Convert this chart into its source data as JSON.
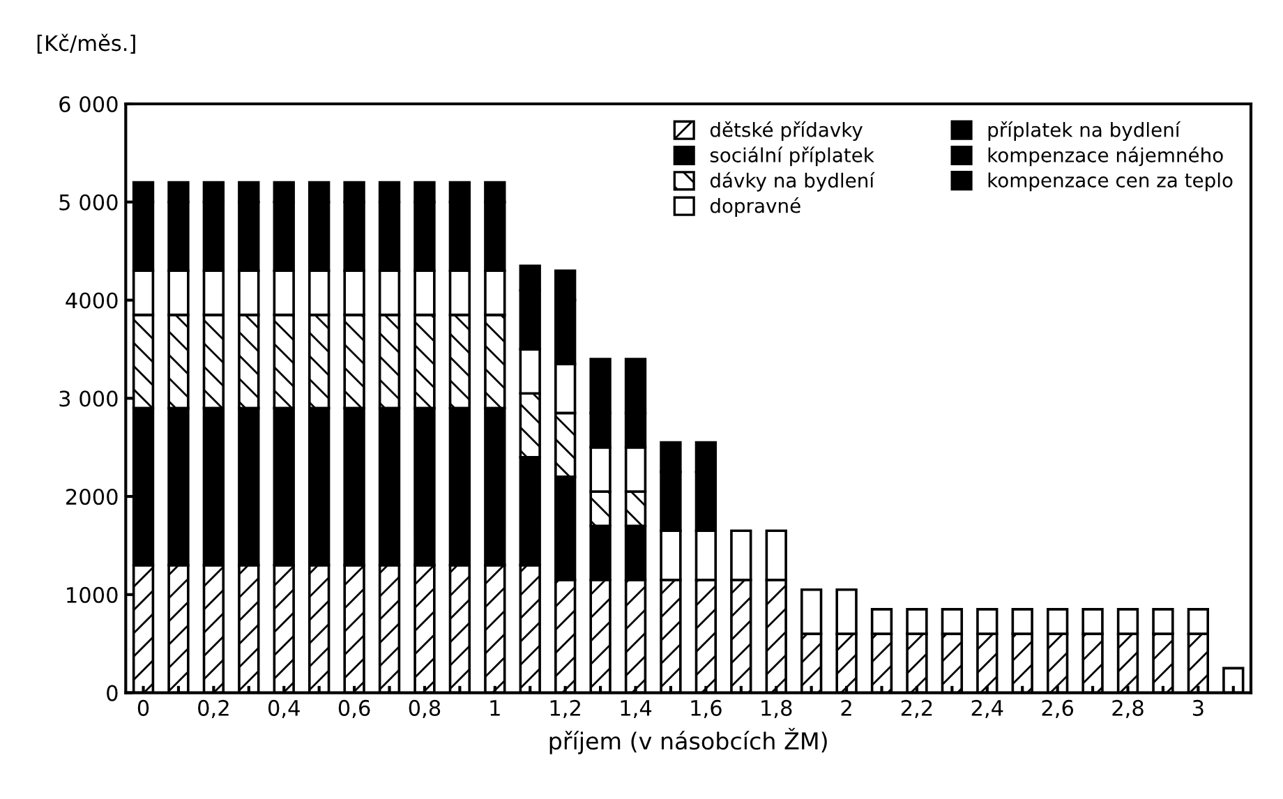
{
  "chart_data": {
    "type": "bar",
    "stacked": true,
    "ylabel": "[Kč/měs.]",
    "xlabel": "příjem (v násobcích ŽM)",
    "x": [
      0,
      0.1,
      0.2,
      0.3,
      0.4,
      0.5,
      0.6,
      0.7,
      0.8,
      0.9,
      1,
      1.1,
      1.2,
      1.3,
      1.4,
      1.5,
      1.6,
      1.7,
      1.8,
      1.9,
      2,
      2.1,
      2.2,
      2.3,
      2.4,
      2.5,
      2.6,
      2.7,
      2.8,
      2.9,
      3,
      3.1
    ],
    "series": [
      {
        "name": "dětské přídavky",
        "color": "#000000",
        "values": [
          1300,
          1300,
          1300,
          1300,
          1300,
          1300,
          1300,
          1300,
          1300,
          1300,
          1300,
          1300,
          1150,
          1150,
          1150,
          1150,
          1150,
          1150,
          1150,
          600,
          600,
          600,
          600,
          600,
          600,
          600,
          600,
          600,
          600,
          600,
          600,
          null
        ]
      },
      {
        "name": "sociální příplatek",
        "color": "#000000",
        "values": [
          1600,
          1600,
          1600,
          1600,
          1600,
          1600,
          1600,
          1600,
          1600,
          1600,
          1600,
          1100,
          1050,
          550,
          550,
          null,
          null,
          null,
          null,
          null,
          null,
          null,
          null,
          null,
          null,
          null,
          null,
          null,
          null,
          null,
          null,
          null
        ]
      },
      {
        "name": "dávky na bydlení",
        "color": "#000000",
        "values": [
          950,
          950,
          950,
          950,
          950,
          950,
          950,
          950,
          950,
          950,
          950,
          650,
          650,
          350,
          350,
          null,
          null,
          null,
          null,
          null,
          null,
          null,
          null,
          null,
          null,
          null,
          null,
          null,
          null,
          null,
          null,
          null
        ]
      },
      {
        "name": "dopravné",
        "color": "#ffffff",
        "values": [
          450,
          450,
          450,
          450,
          450,
          450,
          450,
          450,
          450,
          450,
          450,
          450,
          500,
          450,
          450,
          500,
          500,
          500,
          500,
          450,
          450,
          250,
          250,
          250,
          250,
          250,
          250,
          250,
          250,
          250,
          250,
          250
        ]
      },
      {
        "name": "příplatek na bydlení",
        "color": "#000000",
        "values": [
          700,
          700,
          700,
          700,
          700,
          700,
          700,
          700,
          700,
          700,
          700,
          600,
          650,
          350,
          350,
          600,
          600,
          null,
          null,
          null,
          null,
          null,
          null,
          null,
          null,
          null,
          null,
          null,
          null,
          null,
          null,
          null
        ]
      },
      {
        "name": "kompenzace nájemného",
        "color": "#000000",
        "values": [
          200,
          200,
          200,
          200,
          200,
          200,
          200,
          200,
          200,
          200,
          200,
          250,
          300,
          550,
          550,
          300,
          300,
          null,
          null,
          null,
          null,
          null,
          null,
          null,
          null,
          null,
          null,
          null,
          null,
          null,
          null,
          null
        ]
      },
      {
        "name": "kompenzace cen za teplo",
        "color": "#000000",
        "values": [
          null,
          null,
          null,
          null,
          null,
          null,
          null,
          null,
          null,
          null,
          null,
          null,
          null,
          null,
          null,
          null,
          null,
          null,
          null,
          null,
          null,
          null,
          null,
          null,
          null,
          null,
          null,
          null,
          null,
          null,
          null,
          null
        ]
      }
    ],
    "xlim": [
      -0.05,
      3.15
    ],
    "xticks": [
      {
        "value": 0,
        "label": "0"
      },
      {
        "value": 0.1,
        "label": null
      },
      {
        "value": 0.2,
        "label": "0,2"
      },
      {
        "value": 0.3,
        "label": null
      },
      {
        "value": 0.4,
        "label": "0,4"
      },
      {
        "value": 0.5,
        "label": null
      },
      {
        "value": 0.6,
        "label": "0,6"
      },
      {
        "value": 0.7,
        "label": null
      },
      {
        "value": 0.8,
        "label": "0,8"
      },
      {
        "value": 0.9,
        "label": null
      },
      {
        "value": 1,
        "label": "1"
      },
      {
        "value": 1.1,
        "label": null
      },
      {
        "value": 1.2,
        "label": "1,2"
      },
      {
        "value": 1.3,
        "label": null
      },
      {
        "value": 1.4,
        "label": "1,4"
      },
      {
        "value": 1.5,
        "label": null
      },
      {
        "value": 1.6,
        "label": "1,6"
      },
      {
        "value": 1.7,
        "label": null
      },
      {
        "value": 1.8,
        "label": "1,8"
      },
      {
        "value": 1.9,
        "label": null
      },
      {
        "value": 2,
        "label": "2"
      },
      {
        "value": 2.1,
        "label": null
      },
      {
        "value": 2.2,
        "label": "2,2"
      },
      {
        "value": 2.3,
        "label": null
      },
      {
        "value": 2.4,
        "label": "2,4"
      },
      {
        "value": 2.5,
        "label": null
      },
      {
        "value": 2.6,
        "label": "2,6"
      },
      {
        "value": 2.7,
        "label": null
      },
      {
        "value": 2.8,
        "label": "2,8"
      },
      {
        "value": 2.9,
        "label": null
      },
      {
        "value": 3,
        "label": "3"
      },
      {
        "value": 3.1,
        "label": null
      }
    ],
    "ylim": [
      0,
      6000
    ],
    "yticks": [
      0,
      1000,
      2000,
      {
        "value": 3000,
        "label": "3 000"
      },
      4000,
      {
        "value": 5000,
        "label": "5 000"
      },
      {
        "value": 6000,
        "label": "6 000"
      }
    ],
    "grid": false,
    "legend": "top right"
  }
}
